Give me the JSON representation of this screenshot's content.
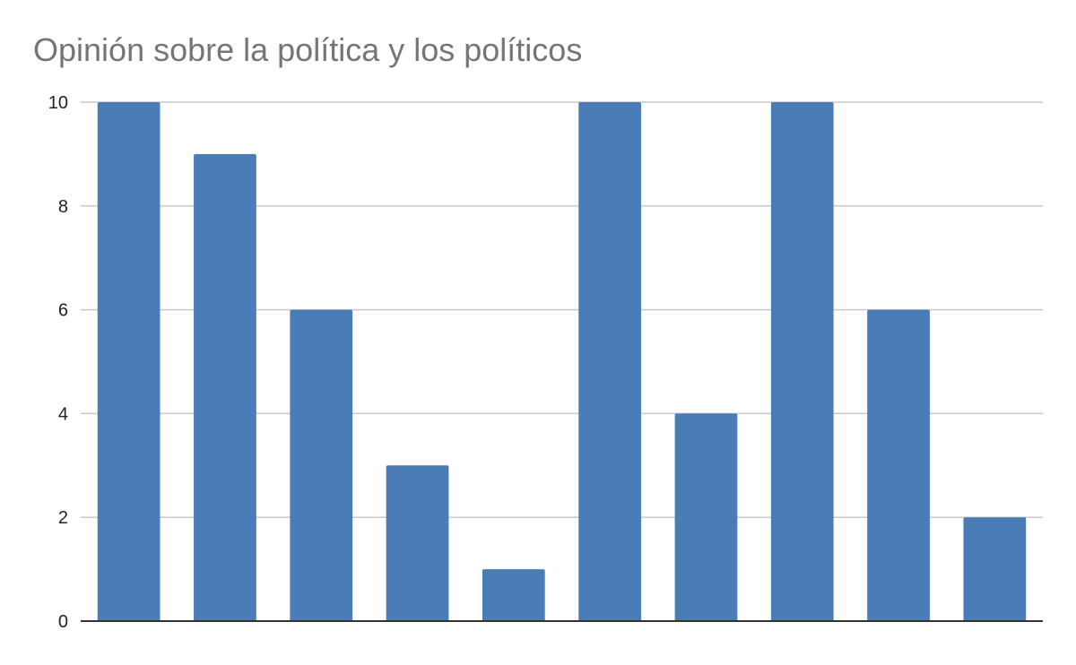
{
  "chart_data": {
    "type": "bar",
    "title": "Opinión sobre la política y los políticos",
    "xlabel": "",
    "ylabel": "",
    "categories": [
      "",
      "",
      "",
      "",
      "",
      "",
      "",
      "",
      "",
      ""
    ],
    "values": [
      10,
      9,
      6,
      3,
      1,
      10,
      4,
      10,
      6,
      2
    ],
    "ylim": [
      0,
      10
    ],
    "yticks": [
      0,
      2,
      4,
      6,
      8,
      10
    ],
    "grid": true,
    "legend": "none",
    "bar_color": "#4a7cb7"
  }
}
